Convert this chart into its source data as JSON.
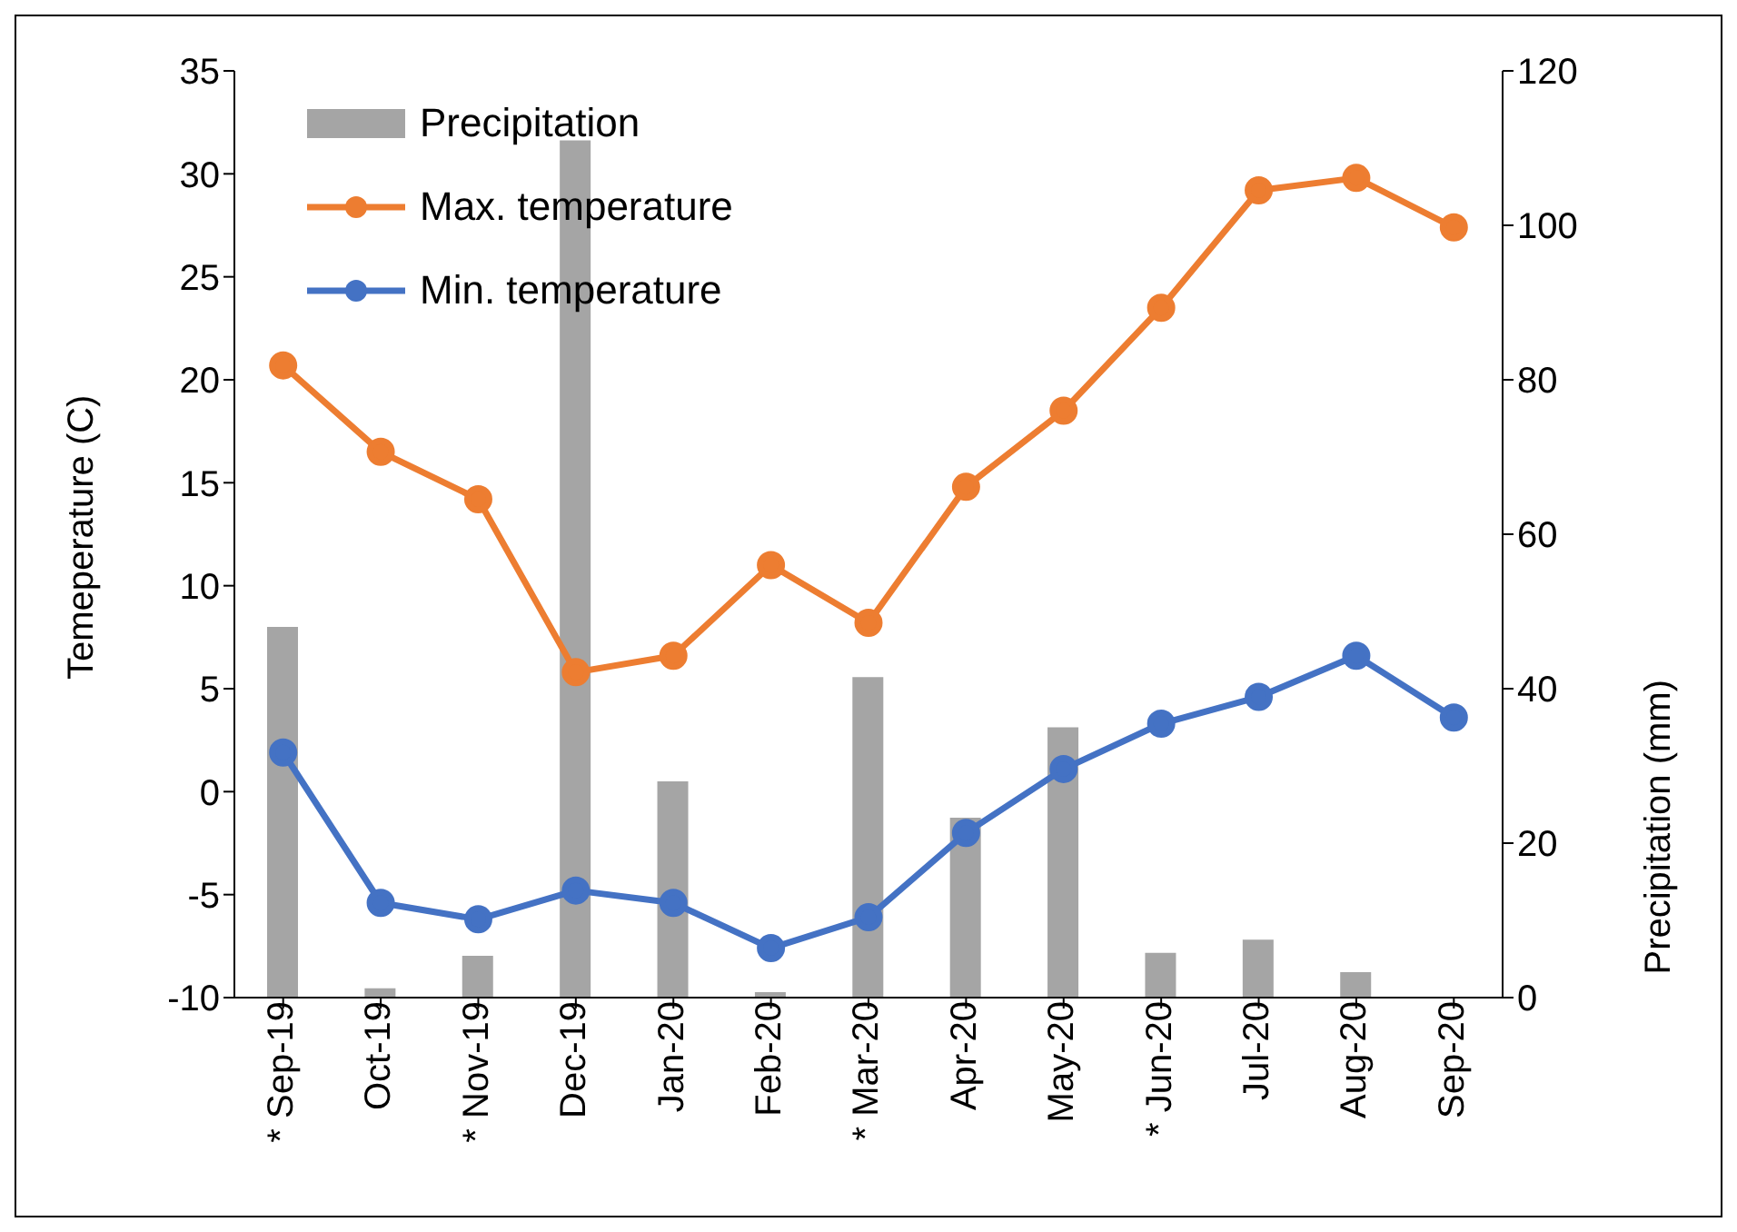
{
  "chart_data": {
    "type": "line",
    "categories": [
      "* Sep-19",
      "Oct-19",
      "* Nov-19",
      "Dec-19",
      "Jan-20",
      "Feb-20",
      "* Mar-20",
      "Apr-20",
      "May-20",
      "* Jun-20",
      "Jul-20",
      "Aug-20",
      "Sep-20"
    ],
    "ylabel": "Temeperature (C)",
    "y2label": "Precipitation (mm)",
    "ylim": [
      -10,
      35
    ],
    "yticks": [
      -10,
      -5,
      0,
      5,
      10,
      15,
      20,
      25,
      30,
      35
    ],
    "y2lim": [
      0,
      120
    ],
    "y2ticks": [
      0,
      20,
      40,
      60,
      80,
      100,
      120
    ],
    "series": [
      {
        "name": "Precipitation",
        "type": "bar",
        "axis": "y2",
        "color": "#a5a5a5",
        "values": [
          48,
          1.2,
          5.4,
          111,
          28,
          0.7,
          41.5,
          23.3,
          35,
          5.8,
          7.5,
          3.3,
          0
        ]
      },
      {
        "name": "Max. temperature",
        "color": "#ed7d31",
        "values": [
          20.7,
          16.5,
          14.2,
          5.8,
          6.6,
          11.0,
          8.2,
          14.8,
          18.5,
          23.5,
          29.2,
          29.8,
          27.4
        ]
      },
      {
        "name": "Min. temperature",
        "color": "#4472c4",
        "values": [
          1.9,
          -5.4,
          -6.2,
          -4.8,
          -5.4,
          -7.6,
          -6.1,
          -2.0,
          1.1,
          3.3,
          4.6,
          6.6,
          3.6
        ]
      }
    ],
    "marker": "circle",
    "grid": false,
    "legend": "top left"
  }
}
